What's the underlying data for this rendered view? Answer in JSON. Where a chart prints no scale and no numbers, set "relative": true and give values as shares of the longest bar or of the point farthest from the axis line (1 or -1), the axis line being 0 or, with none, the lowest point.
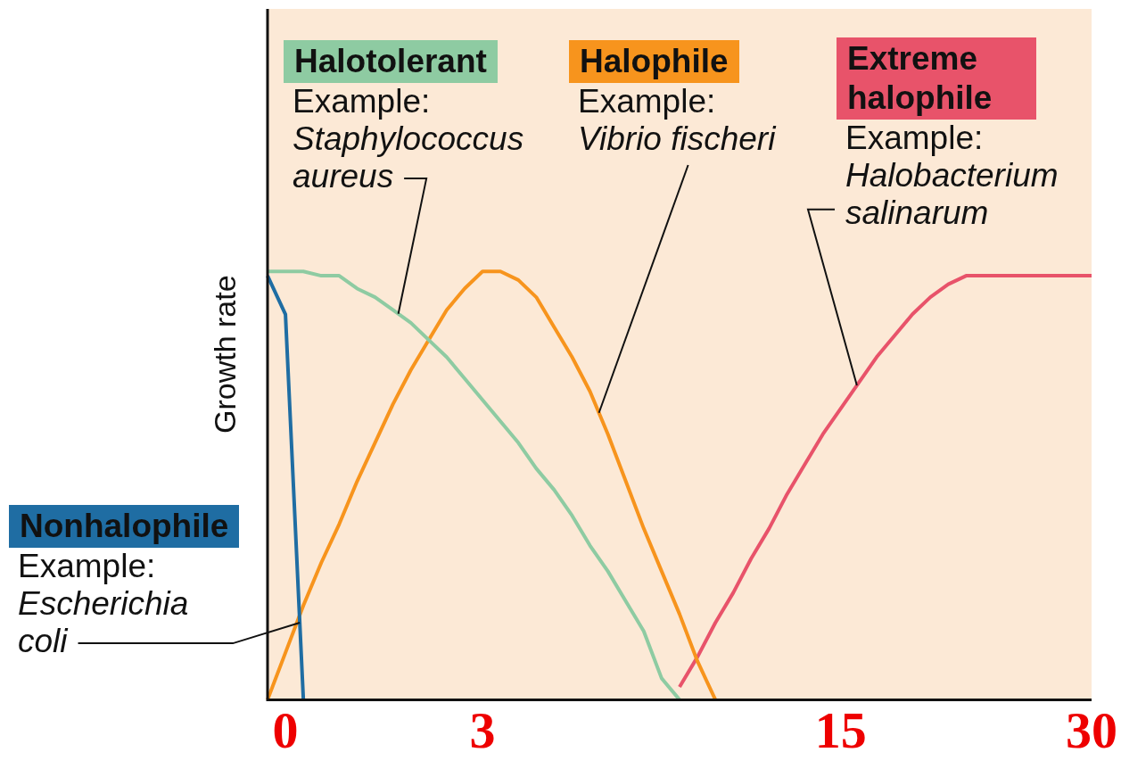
{
  "chart_data": {
    "type": "line",
    "ylabel": "Growth rate",
    "relative": true,
    "legend": false,
    "grid": false,
    "marker": "none",
    "line_style": "solid",
    "categories": [
      null,
      "0",
      null,
      null,
      null,
      null,
      null,
      null,
      null,
      null,
      null,
      null,
      "3",
      null,
      null,
      null,
      null,
      null,
      null,
      null,
      null,
      null,
      null,
      null,
      null,
      null,
      null,
      null,
      null,
      null,
      null,
      null,
      "15",
      null,
      null,
      null,
      null,
      null,
      null,
      null,
      null,
      null,
      null,
      null,
      null,
      null,
      "30"
    ],
    "series": [
      {
        "name": "Nonhalophile",
        "color": "#1f6da3",
        "values": [
          0.99,
          0.9,
          0,
          null,
          null,
          null,
          null,
          null,
          null,
          null,
          null,
          null,
          null,
          null,
          null,
          null,
          null,
          null,
          null,
          null,
          null,
          null,
          null,
          null,
          null,
          null,
          null,
          null,
          null,
          null,
          null,
          null,
          null,
          null,
          null,
          null,
          null,
          null,
          null,
          null,
          null,
          null,
          null,
          null,
          null,
          null,
          null
        ]
      },
      {
        "name": "Halotolerant",
        "color": "#8ecba2",
        "values": [
          1,
          1,
          1,
          0.99,
          0.99,
          0.96,
          0.94,
          0.91,
          0.88,
          0.84,
          0.8,
          0.75,
          0.7,
          0.65,
          0.6,
          0.54,
          0.49,
          0.43,
          0.36,
          0.3,
          0.23,
          0.16,
          0.05,
          0,
          null,
          null,
          null,
          null,
          null,
          null,
          null,
          null,
          null,
          null,
          null,
          null,
          null,
          null,
          null,
          null,
          null,
          null,
          null,
          null,
          null,
          null,
          null
        ]
      },
      {
        "name": "Halophile",
        "color": "#f7941d",
        "values": [
          0,
          0.11,
          0.22,
          0.32,
          0.41,
          0.51,
          0.6,
          0.69,
          0.77,
          0.84,
          0.91,
          0.96,
          1,
          1,
          0.98,
          0.94,
          0.87,
          0.8,
          0.72,
          0.62,
          0.51,
          0.4,
          0.3,
          0.2,
          0.09,
          0,
          null,
          null,
          null,
          null,
          null,
          null,
          null,
          null,
          null,
          null,
          null,
          null,
          null,
          null,
          null,
          null,
          null,
          null,
          null,
          null,
          null
        ]
      },
      {
        "name": "Extreme halophile",
        "color": "#e8536a",
        "values": [
          null,
          null,
          null,
          null,
          null,
          null,
          null,
          null,
          null,
          null,
          null,
          null,
          null,
          null,
          null,
          null,
          null,
          null,
          null,
          null,
          null,
          null,
          null,
          0.03,
          0.1,
          0.18,
          0.25,
          0.33,
          0.4,
          0.48,
          0.55,
          0.62,
          0.68,
          0.74,
          0.8,
          0.85,
          0.9,
          0.94,
          0.97,
          0.99,
          0.99,
          0.99,
          0.99,
          0.99,
          0.99,
          0.99,
          0.99
        ]
      }
    ],
    "annotations": [
      "Example:\nEscherichia\ncoli",
      "Example:\nStaphylococcus\naureus",
      "Example:\nVibrio fischeri",
      "Example:\nHalobacterium\nsalinarum"
    ]
  }
}
